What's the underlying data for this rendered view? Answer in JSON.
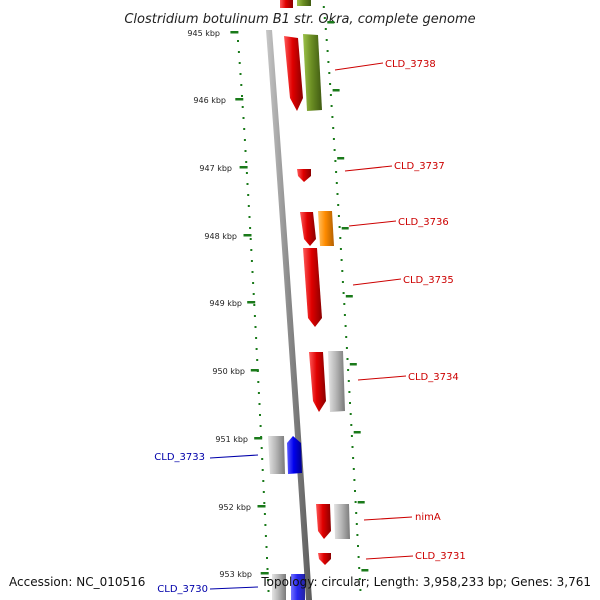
{
  "title": "Clostridium botulinum B1 str. Okra, complete genome",
  "ticks": [
    "945 kbp",
    "946 kbp",
    "947 kbp",
    "948 kbp",
    "949 kbp",
    "950 kbp",
    "951 kbp",
    "952 kbp",
    "953 kbp"
  ],
  "genes": [
    {
      "label": "CLD_3738",
      "color": "#cc0000"
    },
    {
      "label": "CLD_3737",
      "color": "#cc0000"
    },
    {
      "label": "CLD_3736",
      "color": "#cc0000"
    },
    {
      "label": "CLD_3735",
      "color": "#cc0000"
    },
    {
      "label": "CLD_3734",
      "color": "#cc0000"
    },
    {
      "label": "CLD_3733",
      "color": "#0000aa"
    },
    {
      "label": "nimA",
      "color": "#cc0000"
    },
    {
      "label": "CLD_3731",
      "color": "#cc0000"
    },
    {
      "label": "CLD_3730",
      "color": "#0000aa"
    }
  ],
  "footer": {
    "accession": "Accession: NC_010516",
    "topology": "Topology: circular; Length: 3,958,233 bp; Genes: 3,761"
  },
  "colors": {
    "feature_red": "#e00000",
    "feature_olive": "#6b8e23",
    "feature_orange": "#ff8c00",
    "feature_gray": "#b8b8b8",
    "feature_blue": "#0000ee",
    "scale_green": "#1a7a1a",
    "backbone": "#888888"
  }
}
